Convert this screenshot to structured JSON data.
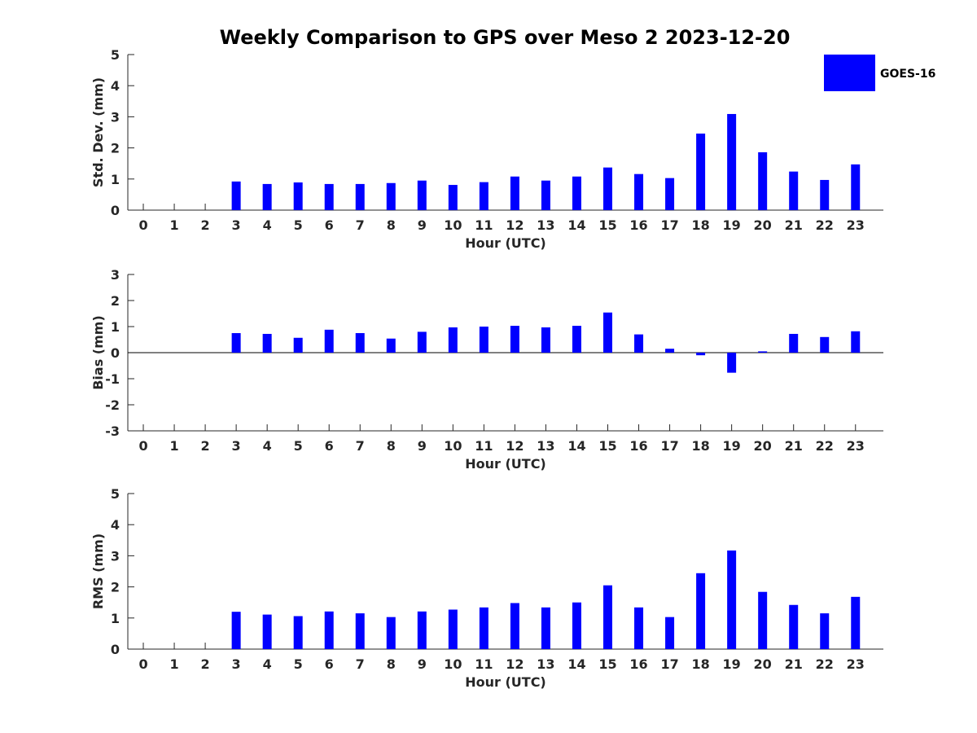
{
  "title": "Weekly Comparison to GPS over Meso 2 2023-12-20",
  "colors": {
    "bar": "#0000ff",
    "axis": "#262626",
    "background": "#ffffff"
  },
  "legend": {
    "label": "GOES-16",
    "placement": "top-right"
  },
  "chart_data": [
    {
      "type": "bar",
      "xlabel": "Hour (UTC)",
      "ylabel": "Std. Dev. (mm)",
      "categories": [
        "0",
        "1",
        "2",
        "3",
        "4",
        "5",
        "6",
        "7",
        "8",
        "9",
        "10",
        "11",
        "12",
        "13",
        "14",
        "15",
        "16",
        "17",
        "18",
        "19",
        "20",
        "21",
        "22",
        "23"
      ],
      "xlim": [
        -0.5,
        23.9
      ],
      "ylim": [
        0,
        5
      ],
      "yticks": [
        "0",
        "1",
        "2",
        "3",
        "4",
        "5"
      ],
      "series": [
        {
          "name": "GOES-16",
          "values": [
            null,
            null,
            null,
            0.92,
            0.84,
            0.89,
            0.84,
            0.84,
            0.87,
            0.95,
            0.81,
            0.9,
            1.08,
            0.95,
            1.08,
            1.37,
            1.16,
            1.03,
            2.46,
            3.09,
            1.86,
            1.24,
            0.97,
            1.47
          ]
        }
      ]
    },
    {
      "type": "bar",
      "xlabel": "Hour (UTC)",
      "ylabel": "Bias (mm)",
      "categories": [
        "0",
        "1",
        "2",
        "3",
        "4",
        "5",
        "6",
        "7",
        "8",
        "9",
        "10",
        "11",
        "12",
        "13",
        "14",
        "15",
        "16",
        "17",
        "18",
        "19",
        "20",
        "21",
        "22",
        "23"
      ],
      "xlim": [
        -0.5,
        23.9
      ],
      "ylim": [
        -3,
        3
      ],
      "yticks": [
        "-3",
        "-2",
        "-1",
        "0",
        "1",
        "2",
        "3"
      ],
      "zero_line": true,
      "series": [
        {
          "name": "GOES-16",
          "values": [
            null,
            null,
            null,
            0.75,
            0.72,
            0.57,
            0.88,
            0.75,
            0.54,
            0.8,
            0.97,
            1.0,
            1.03,
            0.97,
            1.03,
            1.54,
            0.7,
            0.15,
            -0.1,
            -0.77,
            0.05,
            0.72,
            0.6,
            0.82
          ]
        }
      ]
    },
    {
      "type": "bar",
      "xlabel": "Hour (UTC)",
      "ylabel": "RMS (mm)",
      "categories": [
        "0",
        "1",
        "2",
        "3",
        "4",
        "5",
        "6",
        "7",
        "8",
        "9",
        "10",
        "11",
        "12",
        "13",
        "14",
        "15",
        "16",
        "17",
        "18",
        "19",
        "20",
        "21",
        "22",
        "23"
      ],
      "xlim": [
        -0.5,
        23.9
      ],
      "ylim": [
        0,
        5
      ],
      "yticks": [
        "0",
        "1",
        "2",
        "3",
        "4",
        "5"
      ],
      "series": [
        {
          "name": "GOES-16",
          "values": [
            null,
            null,
            null,
            1.2,
            1.11,
            1.06,
            1.21,
            1.15,
            1.03,
            1.21,
            1.27,
            1.34,
            1.48,
            1.34,
            1.5,
            2.05,
            1.34,
            1.03,
            2.44,
            3.17,
            1.84,
            1.42,
            1.15,
            1.68
          ]
        }
      ]
    }
  ]
}
